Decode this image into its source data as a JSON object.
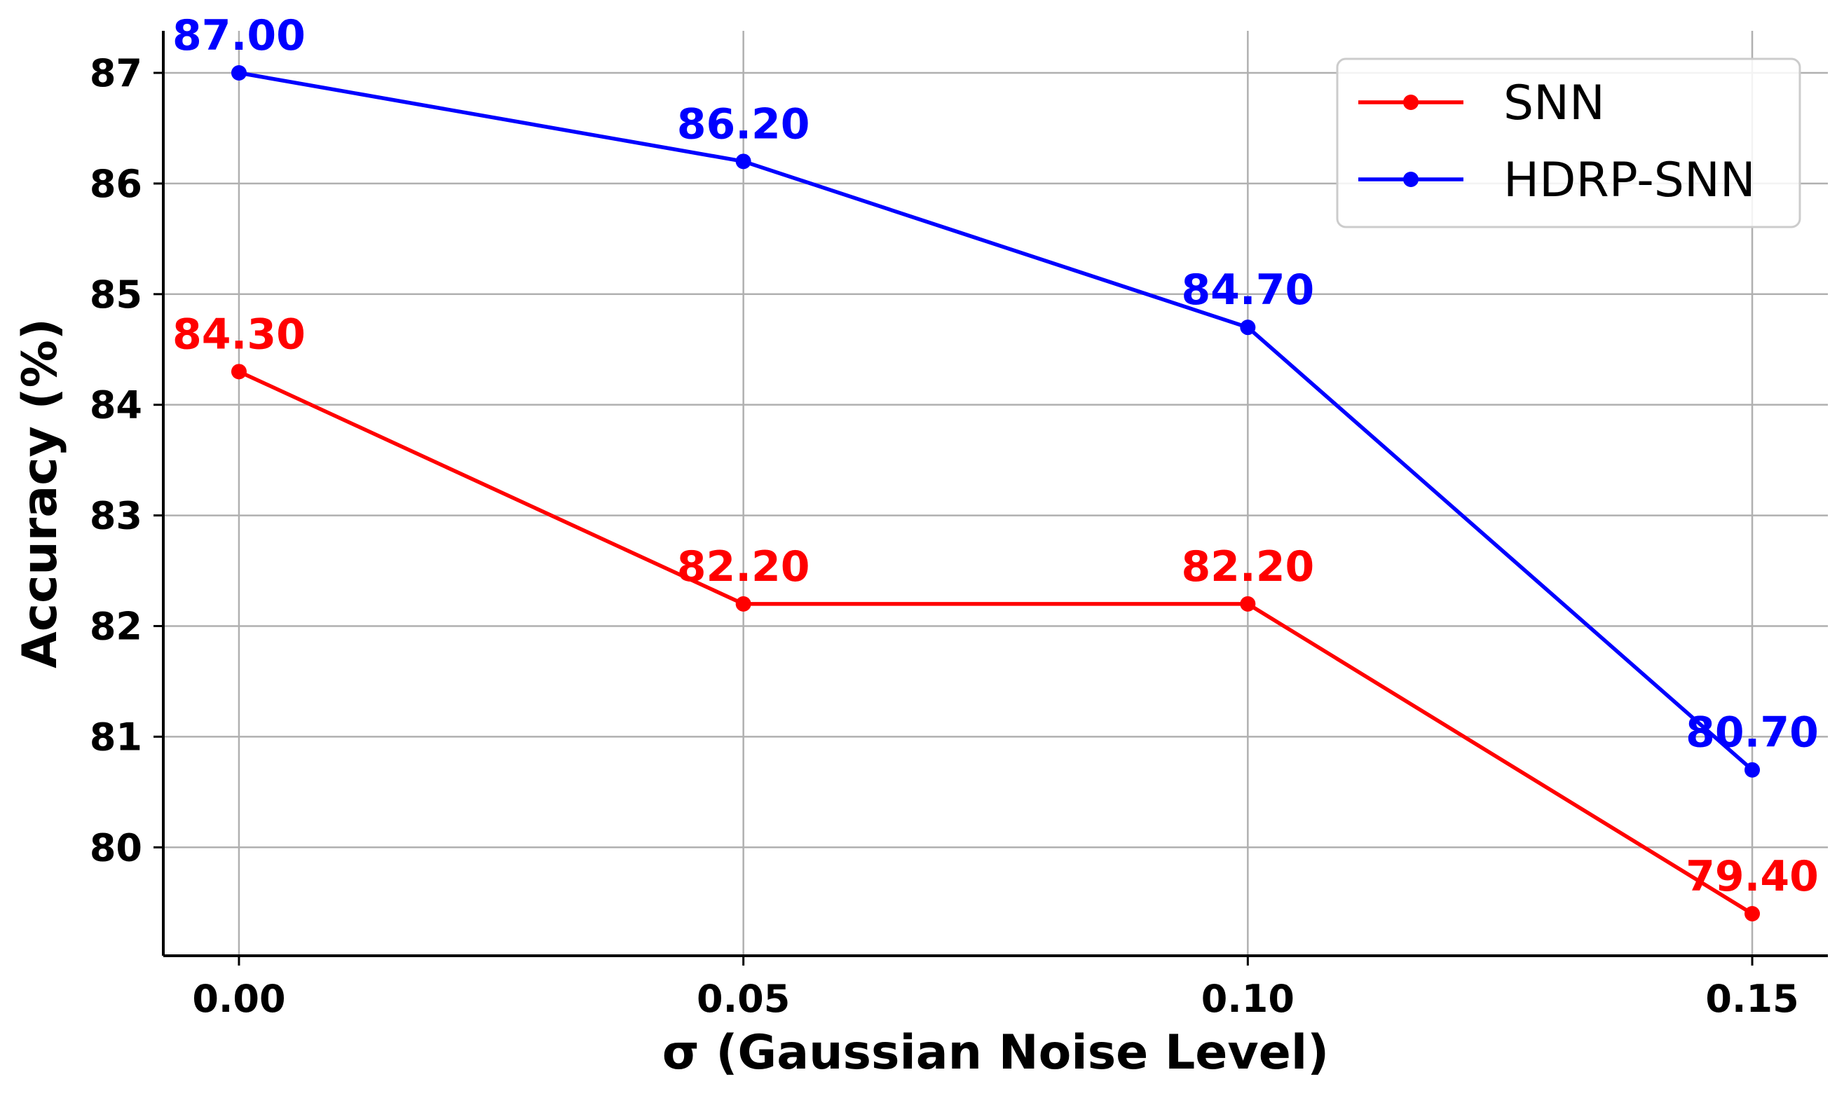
{
  "chart_data": {
    "type": "line",
    "title": "",
    "xlabel": "σ (Gaussian Noise Level)",
    "ylabel": "Accuracy (%)",
    "x": [
      0.0,
      0.05,
      0.1,
      0.15
    ],
    "x_tick_labels": [
      "0.00",
      "0.05",
      "0.10",
      "0.15"
    ],
    "y_ticks": [
      80,
      81,
      82,
      83,
      84,
      85,
      86,
      87
    ],
    "xlim": [
      -0.0075,
      0.1575
    ],
    "ylim": [
      79.02,
      87.38
    ],
    "grid": true,
    "legend_position": "top-right",
    "series": [
      {
        "name": "SNN",
        "color": "#ff0000",
        "values": [
          84.3,
          82.2,
          82.2,
          79.4
        ],
        "labels": [
          "84.30",
          "82.20",
          "82.20",
          "79.40"
        ]
      },
      {
        "name": "HDRP-SNN",
        "color": "#0000ff",
        "values": [
          87.0,
          86.2,
          84.7,
          80.7
        ],
        "labels": [
          "87.00",
          "86.20",
          "84.70",
          "80.70"
        ]
      }
    ]
  }
}
